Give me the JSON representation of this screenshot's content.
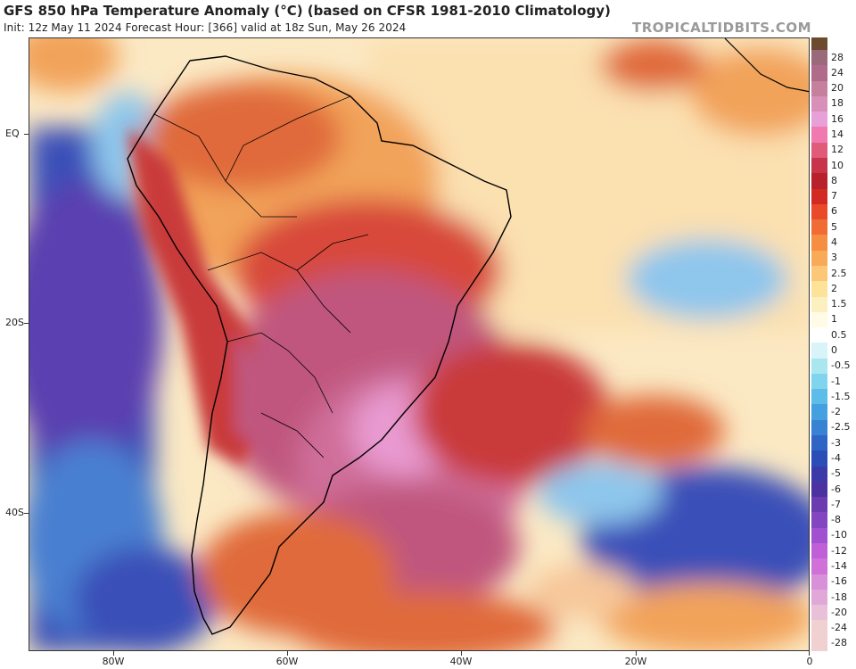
{
  "header": {
    "title": "GFS 850 hPa Temperature Anomaly (°C) (based on CFSR 1981-2010 Climatology)",
    "subtitle": "Init: 12z May 11 2024   Forecast Hour: [366]   valid at 18z Sun, May 26 2024",
    "brand": "TROPICALTIDBITS.COM"
  },
  "map": {
    "lat_labels": [
      "EQ",
      "20S",
      "40S"
    ],
    "lon_labels": [
      "80W",
      "60W",
      "40W",
      "20W",
      "0"
    ],
    "colors": {
      "deep_blue": "#3a4fb8",
      "mid_blue": "#4a7fd0",
      "light_blue": "#8ec6ec",
      "pale": "#fbe9c4",
      "orange": "#f2a35a",
      "dark_orange": "#e06a3a",
      "red": "#c93a3a",
      "magenta": "#c0577e",
      "pink": "#e89ad0",
      "coast": "#000000"
    }
  },
  "colorbar": {
    "labels": [
      "28",
      "24",
      "20",
      "18",
      "16",
      "14",
      "12",
      "10",
      "8",
      "7",
      "6",
      "5",
      "4",
      "3",
      "2.5",
      "2",
      "1.5",
      "1",
      "0.5",
      "0",
      "-0.5",
      "-1",
      "-1.5",
      "-2",
      "-2.5",
      "-3",
      "-4",
      "-5",
      "-6",
      "-7",
      "-8",
      "-10",
      "-12",
      "-14",
      "-16",
      "-18",
      "-20",
      "-24",
      "-28"
    ],
    "colors": [
      "#6b4a2e",
      "#9a6a7a",
      "#b06a8a",
      "#c4809c",
      "#d890b8",
      "#e8a0d8",
      "#f07ab0",
      "#e05a7a",
      "#c8344a",
      "#b8202a",
      "#d22a22",
      "#e84a2a",
      "#f06c34",
      "#f58e40",
      "#f8aa56",
      "#fcc878",
      "#fde29a",
      "#fdf0c0",
      "#fffbe6",
      "#ffffff",
      "#d8f4f8",
      "#a8e6f0",
      "#80d4ee",
      "#5cbde8",
      "#44a0e0",
      "#3882d4",
      "#2f66c6",
      "#2b4db8",
      "#3a3aa8",
      "#4a32a0",
      "#6a3cb0",
      "#8446c0",
      "#a050d0",
      "#c060d8",
      "#d070d8",
      "#d890d8",
      "#e0a8d8",
      "#e8c0d8",
      "#f0d0d0"
    ]
  }
}
